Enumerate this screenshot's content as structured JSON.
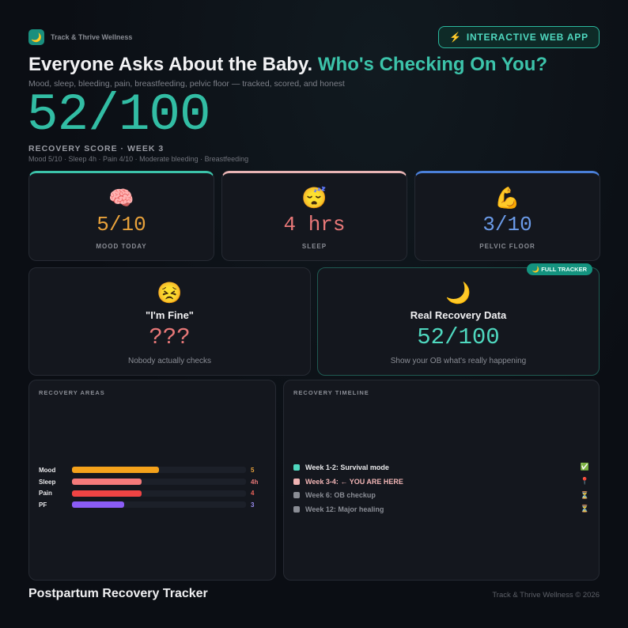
{
  "brand": {
    "icon": "moon-icon",
    "icon_glyph": "🌙",
    "name": "Track & Thrive Wellness"
  },
  "cta": {
    "icon": "lightning-icon",
    "icon_glyph": "⚡",
    "label": "INTERACTIVE WEB APP"
  },
  "header": {
    "title_main": "Everyone Asks About the Baby.",
    "title_accent": "Who's Checking On You?",
    "subtitle": "Mood, sleep, bleeding, pain, breastfeeding, pelvic floor — tracked, scored, and honest",
    "score": "52/100",
    "score_label": "RECOVERY SCORE · WEEK 3",
    "score_detail": "Mood 5/10 · Sleep 4h · Pain 4/10 · Moderate bleeding · Breastfeeding"
  },
  "stats": [
    {
      "emoji": "🧠",
      "icon": "brain-icon",
      "value": "5/10",
      "label": "MOOD TODAY",
      "color": "#e9a23b",
      "accent": "#3cc3aa"
    },
    {
      "emoji": "😴",
      "icon": "sleeping-face-icon",
      "value": "4 hrs",
      "label": "SLEEP",
      "color": "#e87878",
      "accent": "#e8b4b4"
    },
    {
      "emoji": "💪",
      "icon": "flexed-bicep-icon",
      "value": "3/10",
      "label": "PELVIC FLOOR",
      "color": "#6b9be8",
      "accent": "#4a7fd8"
    }
  ],
  "compare": {
    "left": {
      "emoji": "😣",
      "icon": "persevering-face-icon",
      "title": "\"I'm Fine\"",
      "value": "???",
      "sub": "Nobody actually checks",
      "color": "#e87878"
    },
    "right": {
      "emoji": "🌙",
      "icon": "moon-icon",
      "title": "Real Recovery Data",
      "value": "52/100",
      "sub": "Show your OB what's really happening",
      "badge": "🌙 FULL TRACKER",
      "color": "#4fd8bf"
    }
  },
  "areas": {
    "title": "RECOVERY AREAS",
    "items": [
      {
        "name": "Mood",
        "value": "5",
        "fraction": 0.5,
        "color": "#f5a21b",
        "text_color": "#e9a23b"
      },
      {
        "name": "Sleep",
        "value": "4h",
        "fraction": 0.4,
        "color": "#f47a7a",
        "text_color": "#e87878"
      },
      {
        "name": "Pain",
        "value": "4",
        "fraction": 0.4,
        "color": "#ef4444",
        "text_color": "#e8625a"
      },
      {
        "name": "PF",
        "value": "3",
        "fraction": 0.3,
        "color": "#8b5cf6",
        "text_color": "#9a8cf0"
      }
    ]
  },
  "timeline": {
    "title": "RECOVERY TIMELINE",
    "items": [
      {
        "label": "Week 1-2: Survival mode",
        "status_icon": "check-icon",
        "glyph": "✅",
        "dot": "#4fd8bf",
        "color": "#e8e8ea"
      },
      {
        "label": "Week 3-4: ← YOU ARE HERE",
        "status_icon": "pin-icon",
        "glyph": "📍",
        "dot": "#f0b4b4",
        "color": "#f0b4b4"
      },
      {
        "label": "Week 6: OB checkup",
        "status_icon": "hourglass-icon",
        "glyph": "⏳",
        "dot": "#8a8d95",
        "color": "#8a8d95"
      },
      {
        "label": "Week 12: Major healing",
        "status_icon": "hourglass-icon",
        "glyph": "⏳",
        "dot": "#8a8d95",
        "color": "#8a8d95"
      }
    ]
  },
  "footer": {
    "title": "Postpartum Recovery Tracker",
    "copyright": "Track & Thrive Wellness © 2026"
  }
}
